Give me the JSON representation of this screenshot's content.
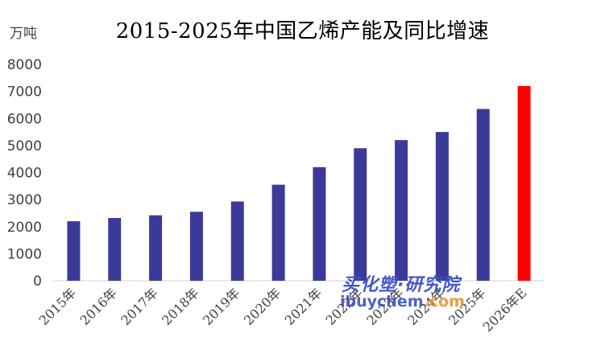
{
  "title": "2015-2025年中国乙烯产能及同比增速",
  "unit_label": "万吨",
  "watermark": {
    "line1": "买化塑·研究院",
    "site": "ibuychem",
    "tld": ".com"
  },
  "colors": {
    "bar": "#3b3a98",
    "highlight": "#ff0000",
    "axis": "#d0d0d0",
    "tick_text": "#404040"
  },
  "chart_data": {
    "type": "bar",
    "title": "2015-2025年中国乙烯产能及同比增速",
    "xlabel": "",
    "ylabel": "万吨",
    "ylim": [
      0,
      8000
    ],
    "yticks": [
      0,
      1000,
      2000,
      3000,
      4000,
      5000,
      6000,
      7000,
      8000
    ],
    "grid": false,
    "categories": [
      "2015年",
      "2016年",
      "2017年",
      "2018年",
      "2019年",
      "2020年",
      "2021年",
      "2022年",
      "2023年",
      "2024年",
      "2025年",
      "2026年E"
    ],
    "values": [
      2200,
      2320,
      2420,
      2550,
      2930,
      3550,
      4200,
      4900,
      5200,
      5500,
      6350,
      7200
    ],
    "highlight_index": 11
  }
}
